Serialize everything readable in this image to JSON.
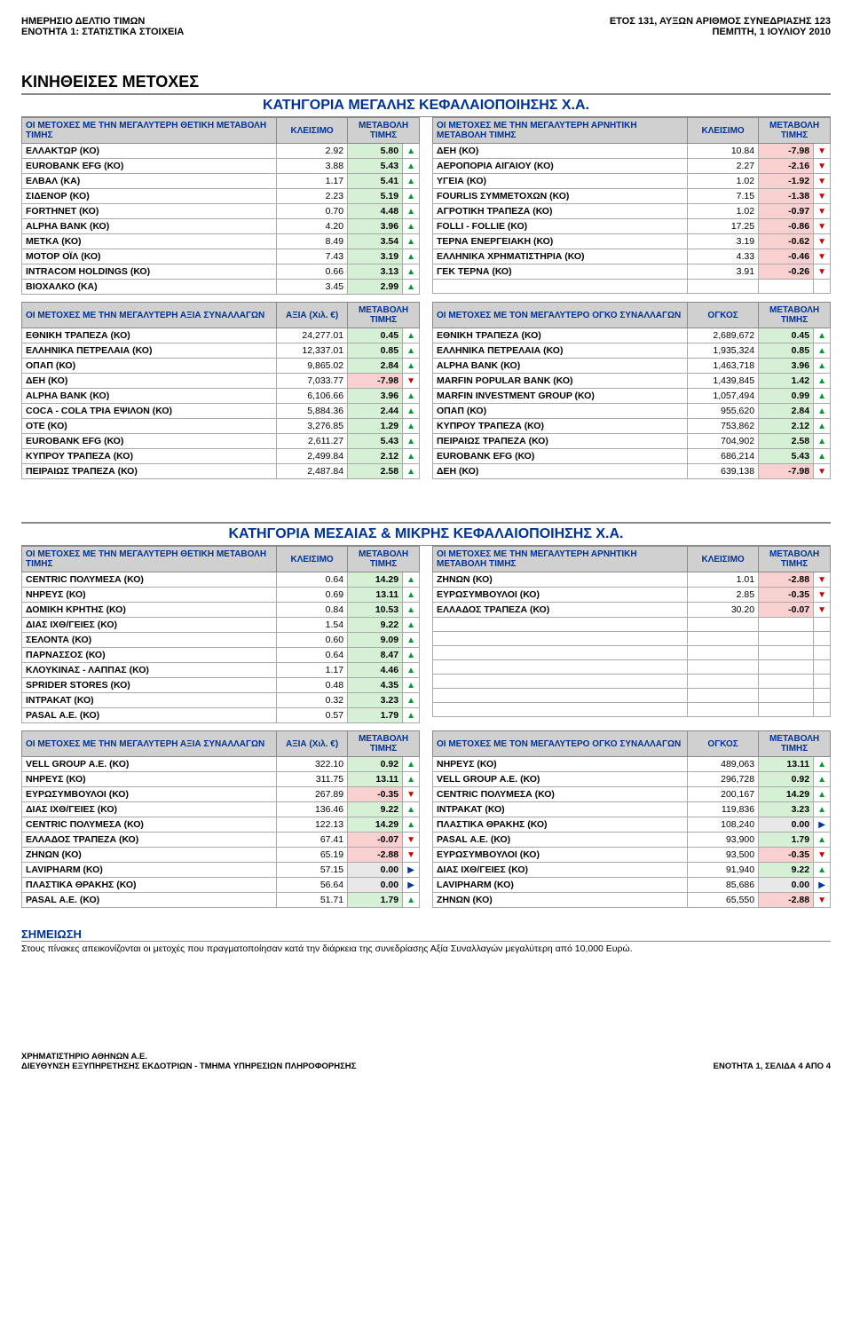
{
  "header": {
    "left1": "ΗΜΕΡΗΣΙΟ ΔΕΛΤΙΟ ΤΙΜΩΝ",
    "left2": "ΕΝΟΤΗΤΑ 1: ΣΤΑΤΙΣΤΙΚΑ ΣΤΟΙΧΕΙΑ",
    "right1": "ΕΤΟΣ 131,  ΑΥΞΩΝ ΑΡΙΘΜΟΣ ΣΥΝΕΔΡΙΑΣΗΣ 123",
    "right2": "ΠΕΜΠΤΗ, 1 ΙΟΥΛΙΟΥ 2010"
  },
  "main_title": "ΚΙΝΗΘΕΙΣΕΣ ΜΕΤΟΧΕΣ",
  "sections": [
    {
      "title": "ΚΑΤΗΓΟΡΙΑ ΜΕΓΑΛΗΣ ΚΕΦΑΛΑΙΟΠΟΙΗΣΗΣ Χ.Α.",
      "pairs": [
        {
          "left": {
            "head": [
              "ΟΙ ΜΕΤΟΧΕΣ ΜΕ ΤΗΝ ΜΕΓΑΛΥΤΕΡΗ ΘΕΤΙΚΗ ΜΕΤΑΒΟΛΗ ΤΙΜΗΣ",
              "ΚΛΕΙΣΙΜΟ",
              "ΜΕΤΑΒΟΛΗ ΤΙΜΗΣ"
            ],
            "rows": [
              [
                "ΕΛΛΑΚΤΩΡ (ΚΟ)",
                "2.92",
                "5.80",
                "up"
              ],
              [
                "EUROBANK EFG (ΚΟ)",
                "3.88",
                "5.43",
                "up"
              ],
              [
                "ΕΛΒΑΛ (ΚΑ)",
                "1.17",
                "5.41",
                "up"
              ],
              [
                "ΣΙΔΕΝΟΡ (ΚΟ)",
                "2.23",
                "5.19",
                "up"
              ],
              [
                "FORTHNET (ΚΟ)",
                "0.70",
                "4.48",
                "up"
              ],
              [
                "ALPHA BANK (ΚΟ)",
                "4.20",
                "3.96",
                "up"
              ],
              [
                "ΜΕΤΚΑ (ΚΟ)",
                "8.49",
                "3.54",
                "up"
              ],
              [
                "ΜΟΤΟΡ ΟΪΛ (ΚΟ)",
                "7.43",
                "3.19",
                "up"
              ],
              [
                "INTRACOM HOLDINGS (ΚΟ)",
                "0.66",
                "3.13",
                "up"
              ],
              [
                "ΒΙΟΧΑΛΚΟ (ΚΑ)",
                "3.45",
                "2.99",
                "up"
              ]
            ]
          },
          "right": {
            "head": [
              "ΟΙ ΜΕΤΟΧΕΣ ΜΕ ΤΗΝ ΜΕΓΑΛΥΤΕΡΗ ΑΡΝΗΤΙΚΗ ΜΕΤΑΒΟΛΗ ΤΙΜΗΣ",
              "ΚΛΕΙΣΙΜΟ",
              "ΜΕΤΑΒΟΛΗ ΤΙΜΗΣ"
            ],
            "rows": [
              [
                "ΔΕΗ (ΚΟ)",
                "10.84",
                "-7.98",
                "down"
              ],
              [
                "ΑΕΡΟΠΟΡΙΑ ΑΙΓΑΙΟΥ (ΚΟ)",
                "2.27",
                "-2.16",
                "down"
              ],
              [
                "ΥΓΕΙΑ (ΚΟ)",
                "1.02",
                "-1.92",
                "down"
              ],
              [
                "FOURLIS ΣΥΜΜΕΤΟΧΩΝ (ΚΟ)",
                "7.15",
                "-1.38",
                "down"
              ],
              [
                "ΑΓΡΟΤΙΚΗ ΤΡΑΠΕΖΑ (ΚΟ)",
                "1.02",
                "-0.97",
                "down"
              ],
              [
                "FOLLI - FOLLIE (ΚΟ)",
                "17.25",
                "-0.86",
                "down"
              ],
              [
                "ΤΕΡΝΑ ΕΝΕΡΓΕΙΑΚΗ (ΚΟ)",
                "3.19",
                "-0.62",
                "down"
              ],
              [
                "ΕΛΛΗΝΙΚΑ ΧΡΗΜΑΤΙΣΤΗΡΙΑ (ΚΟ)",
                "4.33",
                "-0.46",
                "down"
              ],
              [
                "ΓΕΚ ΤΕΡΝΑ (ΚΟ)",
                "3.91",
                "-0.26",
                "down"
              ],
              [
                "",
                "",
                "",
                ""
              ]
            ]
          }
        },
        {
          "left": {
            "head": [
              "ΟΙ ΜΕΤΟΧΕΣ ΜΕ ΤΗΝ ΜΕΓΑΛΥΤΕΡΗ ΑΞΙΑ ΣΥΝΑΛΛΑΓΩΝ",
              "ΑΞΙΑ (Χιλ. €)",
              "ΜΕΤΑΒΟΛΗ ΤΙΜΗΣ"
            ],
            "rows": [
              [
                "ΕΘΝΙΚΗ ΤΡΑΠΕΖΑ (ΚΟ)",
                "24,277.01",
                "0.45",
                "up"
              ],
              [
                "ΕΛΛΗΝΙΚΑ ΠΕΤΡΕΛΑΙΑ (ΚΟ)",
                "12,337.01",
                "0.85",
                "up"
              ],
              [
                "ΟΠΑΠ (ΚΟ)",
                "9,865.02",
                "2.84",
                "up"
              ],
              [
                "ΔΕΗ (ΚΟ)",
                "7,033.77",
                "-7.98",
                "down"
              ],
              [
                "ALPHA BANK (ΚΟ)",
                "6,106.66",
                "3.96",
                "up"
              ],
              [
                "COCA - COLA ΤΡΙΑ ΕΨΙΛΟΝ (ΚΟ)",
                "5,884.36",
                "2.44",
                "up"
              ],
              [
                "ΟΤΕ  (ΚΟ)",
                "3,276.85",
                "1.29",
                "up"
              ],
              [
                "EUROBANK EFG (ΚΟ)",
                "2,611.27",
                "5.43",
                "up"
              ],
              [
                "ΚΥΠΡΟΥ ΤΡΑΠΕΖΑ (ΚΟ)",
                "2,499.84",
                "2.12",
                "up"
              ],
              [
                "ΠΕΙΡΑΙΩΣ ΤΡΑΠΕΖΑ (ΚΟ)",
                "2,487.84",
                "2.58",
                "up"
              ]
            ]
          },
          "right": {
            "head": [
              "ΟΙ ΜΕΤΟΧΕΣ ΜΕ ΤΟΝ ΜΕΓΑΛΥΤΕΡΟ ΟΓΚΟ ΣΥΝΑΛΛΑΓΩΝ",
              "ΟΓΚΟΣ",
              "ΜΕΤΑΒΟΛΗ ΤΙΜΗΣ"
            ],
            "rows": [
              [
                "ΕΘΝΙΚΗ ΤΡΑΠΕΖΑ (ΚΟ)",
                "2,689,672",
                "0.45",
                "up"
              ],
              [
                "ΕΛΛΗΝΙΚΑ ΠΕΤΡΕΛΑΙΑ (ΚΟ)",
                "1,935,324",
                "0.85",
                "up"
              ],
              [
                "ALPHA BANK (ΚΟ)",
                "1,463,718",
                "3.96",
                "up"
              ],
              [
                "MARFIN POPULAR BANK (ΚΟ)",
                "1,439,845",
                "1.42",
                "up"
              ],
              [
                "MARFIN INVESTMENT GROUP  (ΚΟ)",
                "1,057,494",
                "0.99",
                "up"
              ],
              [
                "ΟΠΑΠ (ΚΟ)",
                "955,620",
                "2.84",
                "up"
              ],
              [
                "ΚΥΠΡΟΥ ΤΡΑΠΕΖΑ (ΚΟ)",
                "753,862",
                "2.12",
                "up"
              ],
              [
                "ΠΕΙΡΑΙΩΣ ΤΡΑΠΕΖΑ (ΚΟ)",
                "704,902",
                "2.58",
                "up"
              ],
              [
                "EUROBANK EFG (ΚΟ)",
                "686,214",
                "5.43",
                "up"
              ],
              [
                "ΔΕΗ (ΚΟ)",
                "639,138",
                "-7.98",
                "down"
              ]
            ]
          }
        }
      ]
    },
    {
      "title": "ΚΑΤΗΓΟΡΙΑ ΜΕΣΑΙΑΣ & ΜΙΚΡΗΣ ΚΕΦΑΛΑΙΟΠΟΙΗΣΗΣ Χ.Α.",
      "pairs": [
        {
          "left": {
            "head": [
              "ΟΙ ΜΕΤΟΧΕΣ ΜΕ ΤΗΝ ΜΕΓΑΛΥΤΕΡΗ ΘΕΤΙΚΗ ΜΕΤΑΒΟΛΗ ΤΙΜΗΣ",
              "ΚΛΕΙΣΙΜΟ",
              "ΜΕΤΑΒΟΛΗ ΤΙΜΗΣ"
            ],
            "rows": [
              [
                "CENTRIC ΠΟΛΥΜΕΣΑ (ΚΟ)",
                "0.64",
                "14.29",
                "up"
              ],
              [
                "ΝΗΡΕΥΣ (ΚΟ)",
                "0.69",
                "13.11",
                "up"
              ],
              [
                "ΔΟΜΙΚΗ ΚΡΗΤΗΣ (ΚΟ)",
                "0.84",
                "10.53",
                "up"
              ],
              [
                "ΔΙΑΣ ΙΧΘ/ΓΕΙΕΣ (ΚΟ)",
                "1.54",
                "9.22",
                "up"
              ],
              [
                "ΣΕΛΟΝΤΑ (ΚΟ)",
                "0.60",
                "9.09",
                "up"
              ],
              [
                "ΠΑΡΝΑΣΣΟΣ (ΚΟ)",
                "0.64",
                "8.47",
                "up"
              ],
              [
                "ΚΛΟΥΚΙΝΑΣ - ΛΑΠΠΑΣ (ΚΟ)",
                "1.17",
                "4.46",
                "up"
              ],
              [
                "SPRIDER STORES (ΚΟ)",
                "0.48",
                "4.35",
                "up"
              ],
              [
                "ΙΝΤΡΑΚΑΤ (ΚΟ)",
                "0.32",
                "3.23",
                "up"
              ],
              [
                "PASAL Α.Ε. (ΚΟ)",
                "0.57",
                "1.79",
                "up"
              ]
            ]
          },
          "right": {
            "head": [
              "ΟΙ ΜΕΤΟΧΕΣ ΜΕ ΤΗΝ ΜΕΓΑΛΥΤΕΡΗ ΑΡΝΗΤΙΚΗ ΜΕΤΑΒΟΛΗ ΤΙΜΗΣ",
              "ΚΛΕΙΣΙΜΟ",
              "ΜΕΤΑΒΟΛΗ ΤΙΜΗΣ"
            ],
            "rows": [
              [
                "ΖΗΝΩΝ (ΚΟ)",
                "1.01",
                "-2.88",
                "down"
              ],
              [
                "ΕΥΡΩΣΥΜΒΟΥΛΟΙ (ΚΟ)",
                "2.85",
                "-0.35",
                "down"
              ],
              [
                "ΕΛΛΑΔΟΣ ΤΡΑΠΕΖΑ (ΚΟ)",
                "30.20",
                "-0.07",
                "down"
              ],
              [
                "",
                "",
                "",
                ""
              ],
              [
                "",
                "",
                "",
                ""
              ],
              [
                "",
                "",
                "",
                ""
              ],
              [
                "",
                "",
                "",
                ""
              ],
              [
                "",
                "",
                "",
                ""
              ],
              [
                "",
                "",
                "",
                ""
              ],
              [
                "",
                "",
                "",
                ""
              ]
            ]
          }
        },
        {
          "left": {
            "head": [
              "ΟΙ ΜΕΤΟΧΕΣ ΜΕ ΤΗΝ ΜΕΓΑΛΥΤΕΡΗ ΑΞΙΑ ΣΥΝΑΛΛΑΓΩΝ",
              "ΑΞΙΑ (Χιλ. €)",
              "ΜΕΤΑΒΟΛΗ ΤΙΜΗΣ"
            ],
            "rows": [
              [
                "VELL GROUP Α.Ε. (ΚΟ)",
                "322.10",
                "0.92",
                "up"
              ],
              [
                "ΝΗΡΕΥΣ (ΚΟ)",
                "311.75",
                "13.11",
                "up"
              ],
              [
                "ΕΥΡΩΣΥΜΒΟΥΛΟΙ (ΚΟ)",
                "267.89",
                "-0.35",
                "down"
              ],
              [
                "ΔΙΑΣ ΙΧΘ/ΓΕΙΕΣ (ΚΟ)",
                "136.46",
                "9.22",
                "up"
              ],
              [
                "CENTRIC ΠΟΛΥΜΕΣΑ (ΚΟ)",
                "122.13",
                "14.29",
                "up"
              ],
              [
                "ΕΛΛΑΔΟΣ ΤΡΑΠΕΖΑ (ΚΟ)",
                "67.41",
                "-0.07",
                "down"
              ],
              [
                "ΖΗΝΩΝ (ΚΟ)",
                "65.19",
                "-2.88",
                "down"
              ],
              [
                "LAVIPHARM (ΚΟ)",
                "57.15",
                "0.00",
                "flat"
              ],
              [
                "ΠΛΑΣΤΙΚΑ ΘΡΑΚΗΣ (ΚΟ)",
                "56.64",
                "0.00",
                "flat"
              ],
              [
                "PASAL Α.Ε. (ΚΟ)",
                "51.71",
                "1.79",
                "up"
              ]
            ]
          },
          "right": {
            "head": [
              "ΟΙ ΜΕΤΟΧΕΣ ΜΕ ΤΟΝ ΜΕΓΑΛΥΤΕΡΟ ΟΓΚΟ ΣΥΝΑΛΛΑΓΩΝ",
              "ΟΓΚΟΣ",
              "ΜΕΤΑΒΟΛΗ ΤΙΜΗΣ"
            ],
            "rows": [
              [
                "ΝΗΡΕΥΣ (ΚΟ)",
                "489,063",
                "13.11",
                "up"
              ],
              [
                "VELL GROUP Α.Ε. (ΚΟ)",
                "296,728",
                "0.92",
                "up"
              ],
              [
                "CENTRIC ΠΟΛΥΜΕΣΑ (ΚΟ)",
                "200,167",
                "14.29",
                "up"
              ],
              [
                "ΙΝΤΡΑΚΑΤ (ΚΟ)",
                "119,836",
                "3.23",
                "up"
              ],
              [
                "ΠΛΑΣΤΙΚΑ ΘΡΑΚΗΣ (ΚΟ)",
                "108,240",
                "0.00",
                "flat"
              ],
              [
                "PASAL Α.Ε. (ΚΟ)",
                "93,900",
                "1.79",
                "up"
              ],
              [
                "ΕΥΡΩΣΥΜΒΟΥΛΟΙ (ΚΟ)",
                "93,500",
                "-0.35",
                "down"
              ],
              [
                "ΔΙΑΣ ΙΧΘ/ΓΕΙΕΣ (ΚΟ)",
                "91,940",
                "9.22",
                "up"
              ],
              [
                "LAVIPHARM (ΚΟ)",
                "85,686",
                "0.00",
                "flat"
              ],
              [
                "ΖΗΝΩΝ (ΚΟ)",
                "65,550",
                "-2.88",
                "down"
              ]
            ]
          }
        }
      ]
    }
  ],
  "note": {
    "title": "ΣΗΜΕΙΩΣΗ",
    "text": "Στους πίνακες απεικονίζονται οι μετοχές που πραγματοποίησαν κατά την διάρκεια της συνεδρίασης Αξία Συναλλαγών μεγαλύτερη από 10,000 Ευρώ."
  },
  "footer": {
    "left1": "ΧΡΗΜΑΤΙΣΤΗΡΙΟ ΑΘΗΝΩΝ Α.Ε.",
    "left2": "ΔΙΕΥΘΥΝΣΗ ΕΞΥΠΗΡΕΤΗΣΗΣ ΕΚΔΟΤΡΙΩΝ - ΤΜΗΜΑ ΥΠΗΡΕΣΙΩΝ ΠΛΗΡΟΦΟΡΗΣΗΣ",
    "right": "ΕΝΟΤΗΤΑ 1, ΣΕΛΙΔΑ 4 ΑΠΟ 4"
  },
  "colors": {
    "up": "#009933",
    "down": "#cc0000",
    "flat": "#003399",
    "headbg": "#d0d0d0",
    "upbg": "#d6f0d6",
    "downbg": "#f8d0d0"
  }
}
